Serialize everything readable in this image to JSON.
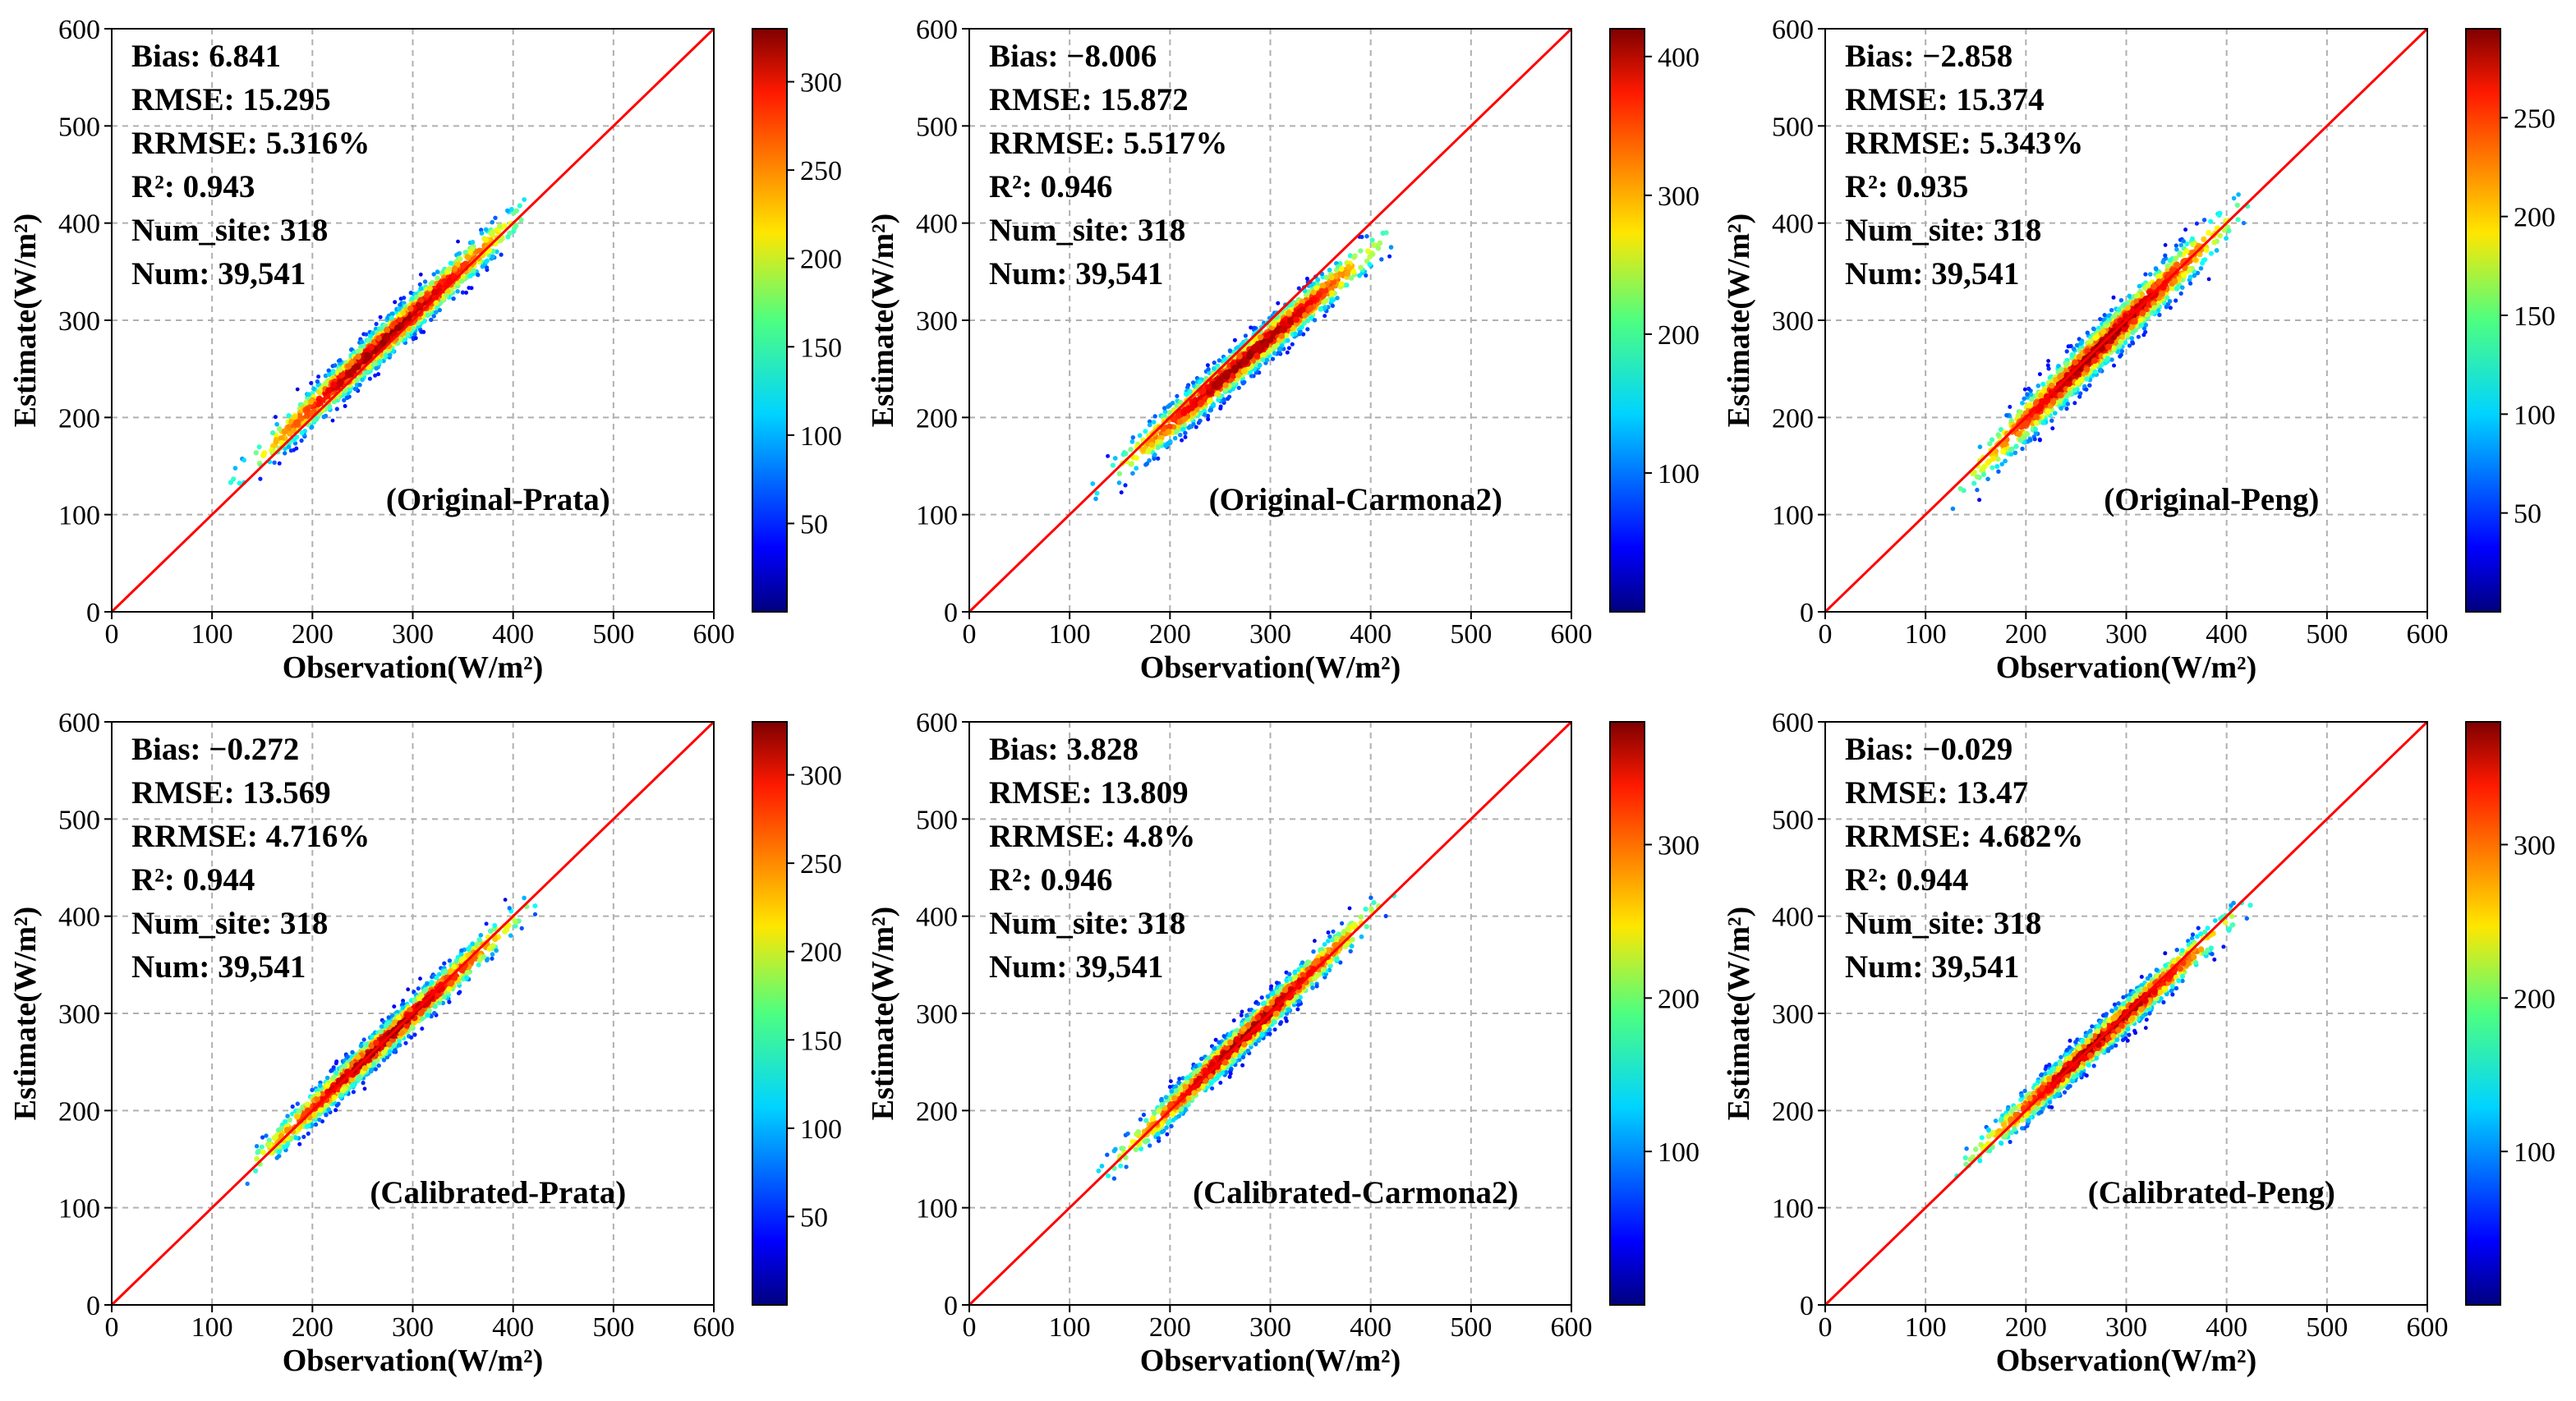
{
  "figure": {
    "description_domain": "scatter-density comparison of estimated vs observed radiation",
    "one_to_one_line_color": "#ff0000",
    "grid": true
  },
  "chart_data": [
    {
      "type": "scatter",
      "xlabel": "Observation(W/m²)",
      "ylabel": "Estimate(W/m²)",
      "xlim": [
        0,
        600
      ],
      "ylim": [
        0,
        600
      ],
      "xticks": [
        "0",
        "100",
        "200",
        "300",
        "400",
        "500",
        "600"
      ],
      "yticks": [
        "0",
        "100",
        "200",
        "300",
        "400",
        "500",
        "600"
      ],
      "stats": [
        "Bias: 6.841",
        "RMSE: 15.295",
        "RRMSE: 5.316%",
        "R²: 0.943",
        "Num_site: 318",
        "Num: 39,541"
      ],
      "label": "(Original-Prata)",
      "colorbar": {
        "max": 330,
        "ticks": [
          "50",
          "100",
          "150",
          "200",
          "250",
          "300"
        ]
      },
      "cloud": {
        "x_range": [
          105,
          440
        ],
        "slope": 0.96,
        "intercept": 18,
        "spread": 16
      }
    },
    {
      "type": "scatter",
      "xlabel": "Observation(W/m²)",
      "ylabel": "Estimate(W/m²)",
      "xlim": [
        0,
        600
      ],
      "ylim": [
        0,
        600
      ],
      "xticks": [
        "0",
        "100",
        "200",
        "300",
        "400",
        "500",
        "600"
      ],
      "yticks": [
        "0",
        "100",
        "200",
        "300",
        "400",
        "500",
        "600"
      ],
      "stats": [
        "Bias: −8.006",
        "RMSE: 15.872",
        "RRMSE: 5.517%",
        "R²: 0.946",
        "Num_site: 318",
        "Num: 39,541"
      ],
      "label": "(Original-Carmona2)",
      "colorbar": {
        "max": 420,
        "ticks": [
          "100",
          "200",
          "300",
          "400"
        ]
      },
      "cloud": {
        "x_range": [
          115,
          440
        ],
        "slope": 0.89,
        "intercept": 15,
        "spread": 16
      }
    },
    {
      "type": "scatter",
      "xlabel": "Observation(W/m²)",
      "ylabel": "Estimate(W/m²)",
      "xlim": [
        0,
        600
      ],
      "ylim": [
        0,
        600
      ],
      "xticks": [
        "0",
        "100",
        "200",
        "300",
        "400",
        "500",
        "600"
      ],
      "yticks": [
        "0",
        "100",
        "200",
        "300",
        "400",
        "500",
        "600"
      ],
      "stats": [
        "Bias: −2.858",
        "RMSE: 15.374",
        "RRMSE: 5.343%",
        "R²: 0.935",
        "Num_site: 318",
        "Num: 39,541"
      ],
      "label": "(Original-Peng)",
      "colorbar": {
        "max": 295,
        "ticks": [
          "50",
          "100",
          "150",
          "200",
          "250"
        ]
      },
      "cloud": {
        "x_range": [
          110,
          440
        ],
        "slope": 1.02,
        "intercept": -7,
        "spread": 19
      }
    },
    {
      "type": "scatter",
      "xlabel": "Observation(W/m²)",
      "ylabel": "Estimate(W/m²)",
      "xlim": [
        0,
        600
      ],
      "ylim": [
        0,
        600
      ],
      "xticks": [
        "0",
        "100",
        "200",
        "300",
        "400",
        "500",
        "600"
      ],
      "yticks": [
        "0",
        "100",
        "200",
        "300",
        "400",
        "500",
        "600"
      ],
      "stats": [
        "Bias: −0.272",
        "RMSE: 13.569",
        "RRMSE: 4.716%",
        "R²: 0.944",
        "Num_site: 318",
        "Num: 39,541"
      ],
      "label": "(Calibrated-Prata)",
      "colorbar": {
        "max": 330,
        "ticks": [
          "50",
          "100",
          "150",
          "200",
          "250",
          "300"
        ]
      },
      "cloud": {
        "x_range": [
          105,
          440
        ],
        "slope": 0.97,
        "intercept": 8,
        "spread": 14
      }
    },
    {
      "type": "scatter",
      "xlabel": "Observation(W/m²)",
      "ylabel": "Estimate(W/m²)",
      "xlim": [
        0,
        600
      ],
      "ylim": [
        0,
        600
      ],
      "xticks": [
        "0",
        "100",
        "200",
        "300",
        "400",
        "500",
        "600"
      ],
      "yticks": [
        "0",
        "100",
        "200",
        "300",
        "400",
        "500",
        "600"
      ],
      "stats": [
        "Bias: 3.828",
        "RMSE: 13.809",
        "RRMSE: 4.8%",
        "R²: 0.946",
        "Num_site: 318",
        "Num: 39,541"
      ],
      "label": "(Calibrated-Carmona2)",
      "colorbar": {
        "max": 380,
        "ticks": [
          "100",
          "200",
          "300"
        ]
      },
      "cloud": {
        "x_range": [
          115,
          440
        ],
        "slope": 1.0,
        "intercept": 2,
        "spread": 14
      }
    },
    {
      "type": "scatter",
      "xlabel": "Observation(W/m²)",
      "ylabel": "Estimate(W/m²)",
      "xlim": [
        0,
        600
      ],
      "ylim": [
        0,
        600
      ],
      "xticks": [
        "0",
        "100",
        "200",
        "300",
        "400",
        "500",
        "600"
      ],
      "yticks": [
        "0",
        "100",
        "200",
        "300",
        "400",
        "500",
        "600"
      ],
      "stats": [
        "Bias: −0.029",
        "RMSE: 13.47",
        "RRMSE: 4.682%",
        "R²: 0.944",
        "Num_site: 318",
        "Num: 39,541"
      ],
      "label": "(Calibrated-Peng)",
      "colorbar": {
        "max": 380,
        "ticks": [
          "100",
          "200",
          "300"
        ]
      },
      "cloud": {
        "x_range": [
          115,
          440
        ],
        "slope": 0.95,
        "intercept": 13,
        "spread": 14
      }
    }
  ]
}
